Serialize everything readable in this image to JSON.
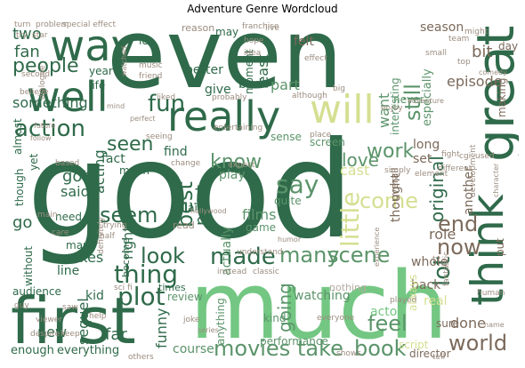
{
  "title": "Adventure Genre Wordcloud",
  "words": {
    "even": "even",
    "good": "good",
    "much": "much",
    "first": "first",
    "great": "great",
    "way": "way",
    "well": "well",
    "really": "really",
    "think": "think",
    "will": "will",
    "movies": "movies",
    "take": "take",
    "book": "book",
    "made": "made",
    "thing": "thing",
    "plot": "plot",
    "people": "people",
    "action": "action",
    "look": "look",
    "scene": "scene",
    "many": "many",
    "seem": "seem",
    "fun": "fun",
    "say": "say",
    "little": "little",
    "original": "original",
    "lot": "lot",
    "end": "end",
    "now": "now",
    "world": "world",
    "come": "come",
    "still": "still",
    "work": "work",
    "know": "know",
    "love": "love",
    "feel": "feel",
    "best": "best",
    "point": "point",
    "going": "going",
    "seen": "seen",
    "something": "something",
    "actor": "actor",
    "fan": "fan",
    "two": "two",
    "go": "go",
    "got": "got",
    "said": "said",
    "makes": "makes",
    "line": "line",
    "sequel": "sequel",
    "kid": "kid",
    "new": "new",
    "far": "far",
    "funny": "funny",
    "right": "right",
    "review": "review",
    "course": "course",
    "enough": "enough",
    "everything": "everything",
    "audience": "audience",
    "part": "part",
    "want": "want",
    "cast": "cast",
    "role": "role",
    "done": "done",
    "back": "back",
    "whole": "whole",
    "another": "another",
    "thought": "thought",
    "episode": "episode",
    "season": "season",
    "bit": "bit",
    "day": "day",
    "long": "long",
    "set": "set",
    "especially": "especially",
    "never": "never",
    "interesting": "interesting",
    "moment": "moment",
    "least": "least",
    "bad": "bad",
    "felt": "felt",
    "may": "may",
    "better": "better",
    "give": "give",
    "find": "find",
    "fact": "fact",
    "year": "year",
    "life": "life",
    "mean": "mean",
    "though": "though",
    "yet": "yet",
    "almost": "almost",
    "acting": "acting",
    "films": "films",
    "game": "game",
    "play": "play",
    "quite": "quite",
    "actually": "actually",
    "villain": "villain",
    "performance": "performance",
    "watching": "watching",
    "kind": "kind",
    "anything": "anything",
    "always": "always",
    "real": "real",
    "script": "script",
    "director": "director",
    "director2": "director",
    "making": "making",
    "sure": "sure",
    "put": "put",
    "let": "let",
    "need": "need",
    "man": "man",
    "times": "times",
    "become": "become",
    "without": "without",
    "sense": "sense",
    "screen": "screen",
    "nothing": "nothing",
    "overall": "overall",
    "believe": "believe",
    "second": "second",
    "special_effect": "special effect",
    "franchise": "franchise",
    "problem": "problem",
    "turn": "turn",
    "try": "try",
    "star": "star",
    "music": "music",
    "friend": "friend",
    "reason": "reason",
    "hope": "hope",
    "live": "live",
    "effect": "effect",
    "top": "top",
    "comedy": "comedy",
    "might": "might",
    "team": "team",
    "small": "small",
    "probably": "probably",
    "liked": "liked",
    "although": "although",
    "big": "big",
    "enjoy": "enjoy",
    "adventure": "adventure",
    "entertaining": "entertaining",
    "place": "place",
    "change": "change",
    "expect": "expect",
    "cgi": "cgi",
    "used": "used",
    "development": "development",
    "different": "different",
    "element": "element",
    "simply": "simply",
    "fight": "fight",
    "instead": "instead",
    "classic": "classic",
    "understand": "understand",
    "humor": "humor",
    "half": "half",
    "trying": "trying",
    "definitely": "definitely",
    "read": "read",
    "sci_fi": "sci fi",
    "saw": "saw",
    "help": "help",
    "joke": "joke",
    "everyone": "everyone",
    "fantastic": "fantastic",
    "tv": "tv",
    "human": "human",
    "played": "played",
    "guy": "guy",
    "viewer": "viewer",
    "despite": "despite",
    "keep": "keep",
    "others": "others",
    "shows": "shows",
    "tell": "tell",
    "dialogue": "dialogue",
    "future": "future",
    "follow": "follow",
    "based": "based",
    "care": "care",
    "main": "main",
    "idea": "idea",
    "seeing": "seeing",
    "perfect": "perfect",
    "mind": "mind",
    "watched": "watched",
    "hollywood": "hollywood",
    "series": "series",
    "name": "name",
    "character": "character",
    "experience": "experience"
  }
}
